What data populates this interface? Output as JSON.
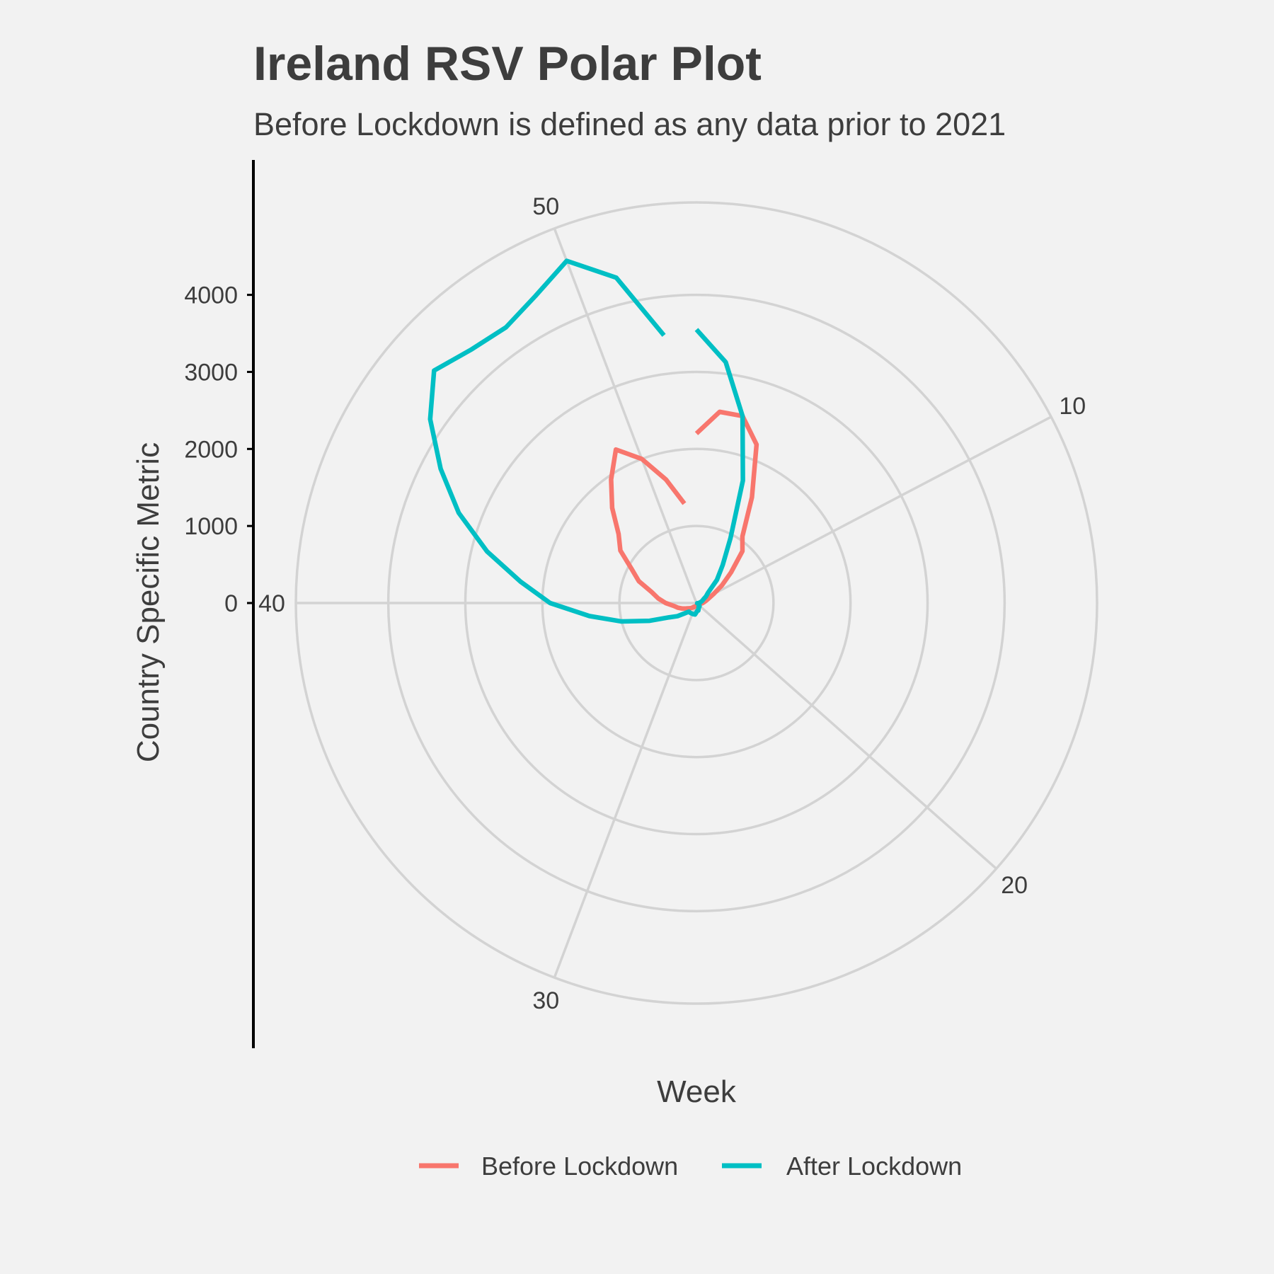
{
  "chart_data": {
    "type": "line",
    "coord": "polar",
    "title": "Ireland RSV Polar Plot",
    "subtitle": "Before Lockdown is defined as any data prior to 2021",
    "xlabel": "Week",
    "ylabel": "Country Specific Metric",
    "theta_range": [
      1,
      53
    ],
    "r_range": [
      0,
      5200
    ],
    "r_ticks": [
      0,
      1000,
      2000,
      3000,
      4000
    ],
    "theta_ticks": [
      10,
      20,
      30,
      40,
      50
    ],
    "grid": true,
    "legend_position": "bottom",
    "series": [
      {
        "name": "Before Lockdown",
        "color": "#F8766D",
        "x": [
          1,
          2,
          3,
          4,
          5,
          6,
          7,
          8,
          9,
          10,
          11,
          12,
          13,
          14,
          15,
          16,
          17,
          18,
          19,
          20,
          21,
          22,
          23,
          24,
          25,
          26,
          27,
          28,
          29,
          30,
          31,
          32,
          33,
          34,
          35,
          36,
          37,
          38,
          39,
          40,
          41,
          42,
          43,
          44,
          45,
          46,
          47,
          48,
          49,
          50,
          51,
          52
        ],
        "y": [
          2200,
          2500,
          2500,
          2200,
          1550,
          1050,
          900,
          600,
          400,
          250,
          170,
          130,
          100,
          80,
          60,
          50,
          40,
          30,
          25,
          20,
          20,
          20,
          20,
          25,
          25,
          30,
          30,
          40,
          40,
          50,
          60,
          60,
          80,
          100,
          120,
          150,
          200,
          250,
          300,
          400,
          500,
          600,
          800,
          950,
          1200,
          1350,
          1650,
          1950,
          2250,
          2000,
          1650,
          1300
        ]
      },
      {
        "name": "After Lockdown",
        "color": "#00BFC4",
        "x": [
          1,
          2,
          3,
          4,
          5,
          6,
          7,
          8,
          9,
          10,
          11,
          12,
          13,
          14,
          15,
          16,
          17,
          18,
          19,
          20,
          21,
          22,
          23,
          24,
          25,
          26,
          27,
          28,
          29,
          30,
          31,
          32,
          33,
          34,
          35,
          36,
          37,
          38,
          39,
          40,
          41,
          42,
          43,
          44,
          45,
          46,
          47,
          48,
          49,
          50,
          51,
          52
        ],
        "y": [
          3550,
          3150,
          2500,
          1700,
          950,
          600,
          400,
          200,
          150,
          100,
          80,
          60,
          40,
          30,
          20,
          10,
          20,
          30,
          40,
          50,
          60,
          60,
          60,
          80,
          100,
          100,
          120,
          150,
          150,
          150,
          150,
          150,
          150,
          200,
          300,
          400,
          650,
          1000,
          1400,
          1900,
          2300,
          2800,
          3300,
          3750,
          4200,
          4550,
          4400,
          4350,
          4500,
          4750,
          4350,
          3500
        ]
      }
    ]
  }
}
